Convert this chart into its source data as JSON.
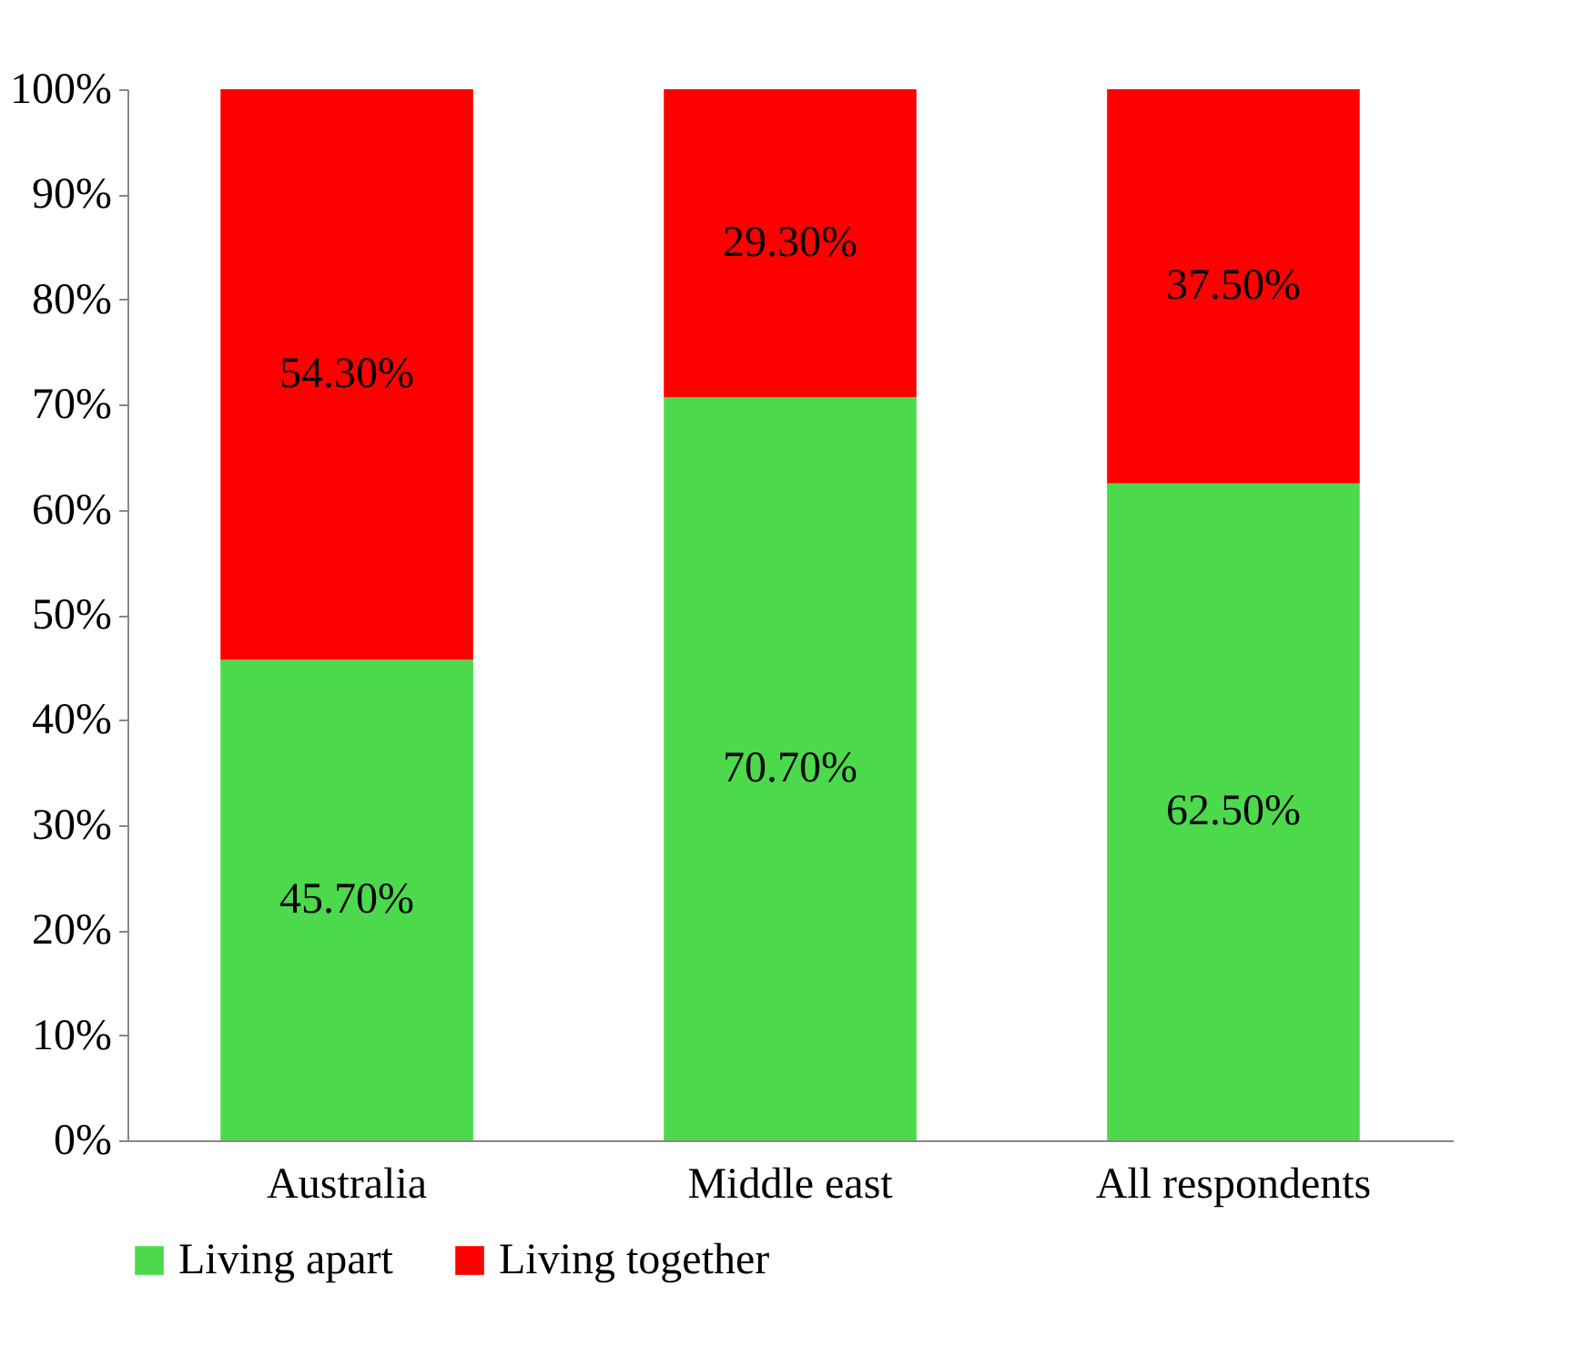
{
  "chart_data": {
    "type": "bar",
    "stacked": true,
    "categories": [
      "Australia",
      "Middle east",
      "All respondents"
    ],
    "series": [
      {
        "name": "Living apart",
        "color": "#4cda4c",
        "values": [
          45.7,
          70.7,
          62.5
        ],
        "value_labels": [
          "45.70%",
          "70.70%",
          "62.50%"
        ]
      },
      {
        "name": "Living together",
        "color": "#ff0000",
        "values": [
          54.3,
          29.3,
          37.5
        ],
        "value_labels": [
          "54.30%",
          "29.30%",
          "37.50%"
        ]
      }
    ],
    "ylim": [
      0,
      100
    ],
    "yticks": [
      {
        "value": 0,
        "label": "0%"
      },
      {
        "value": 10,
        "label": "10%"
      },
      {
        "value": 20,
        "label": "20%"
      },
      {
        "value": 30,
        "label": "30%"
      },
      {
        "value": 40,
        "label": "40%"
      },
      {
        "value": 50,
        "label": "50%"
      },
      {
        "value": 60,
        "label": "60%"
      },
      {
        "value": 70,
        "label": "70%"
      },
      {
        "value": 80,
        "label": "80%"
      },
      {
        "value": 90,
        "label": "90%"
      },
      {
        "value": 100,
        "label": "100%"
      }
    ],
    "grid": false,
    "legend": "bottom"
  }
}
